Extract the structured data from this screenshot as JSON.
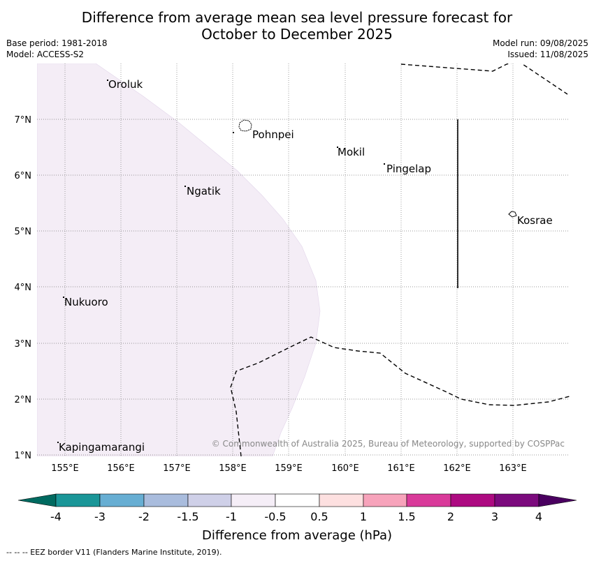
{
  "title": {
    "line1": "Difference from average mean sea level pressure forecast for",
    "line2": "October to December 2025"
  },
  "meta_left": {
    "base_period": "Base period: 1981-2018",
    "model": "Model: ACCESS-S2"
  },
  "meta_right": {
    "model_run": "Model run: 09/08/2025",
    "issued": "Issued: 11/08/2025"
  },
  "map": {
    "lat_labels": [
      "7°N",
      "6°N",
      "5°N",
      "4°N",
      "3°N",
      "2°N",
      "1°N"
    ],
    "lon_labels": [
      "155°E",
      "156°E",
      "157°E",
      "158°E",
      "159°E",
      "160°E",
      "161°E",
      "162°E",
      "163°E"
    ],
    "places": {
      "oroluk": "Oroluk",
      "pohnpei": "Pohnpei",
      "mokil": "Mokil",
      "pingelap": "Pingelap",
      "ngatik": "Ngatik",
      "kosrae": "Kosrae",
      "nukuoro": "Nukuoro",
      "kapingamarangi": "Kapingamarangi"
    },
    "shaded_category": "-1 to -0.5",
    "copyright": "© Commonwealth of Australia 2025, Bureau of Meteorology, supported by COSPPac"
  },
  "colorbar": {
    "colors": [
      "#006a60",
      "#1a9698",
      "#67aed3",
      "#a9bcdd",
      "#cfd0e8",
      "#f5eef7",
      "#ffffff",
      "#fde0e0",
      "#f7a3bb",
      "#d93a9a",
      "#ad0a81",
      "#7b0a7d",
      "#4a0060"
    ],
    "tick_labels": [
      "-4",
      "-3",
      "-2",
      "-1.5",
      "-1",
      "-0.5",
      "0.5",
      "1",
      "1.5",
      "2",
      "3",
      "4"
    ],
    "label": "Difference from average (hPa)"
  },
  "footer": "-- -- -- EEZ border V11 (Flanders Marine Institute, 2019)."
}
